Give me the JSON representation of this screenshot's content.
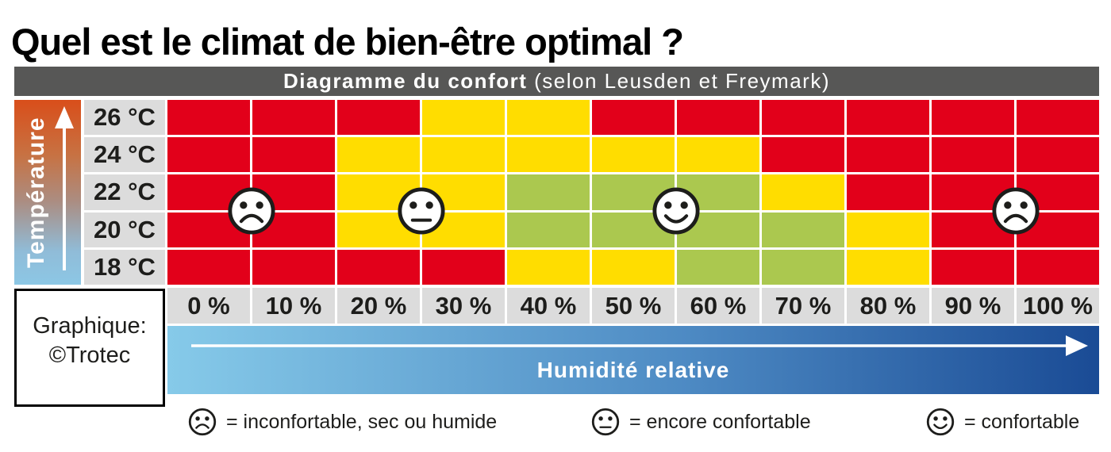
{
  "title": "Quel est le climat de bien-être optimal ?",
  "header": {
    "title_bold": "Diagramme du confort",
    "subtitle": " (selon Leusden et Freymark)"
  },
  "axes": {
    "temperature_label": "Température",
    "humidity_label": "Humidité relative",
    "temperatures": [
      "26 °C",
      "24 °C",
      "22 °C",
      "20 °C",
      "18 °C"
    ],
    "humidities": [
      "0 %",
      "10 %",
      "20 %",
      "30 %",
      "40 %",
      "50 %",
      "60 %",
      "70 %",
      "80 %",
      "90 %",
      "100 %"
    ]
  },
  "credit": {
    "line1": "Graphique:",
    "line2": "©Trotec"
  },
  "legend": [
    {
      "icon": "sad-face",
      "mood": "sad",
      "label": "= inconfortable, sec ou humide"
    },
    {
      "icon": "neutral-face",
      "mood": "neutral",
      "label": "= encore confortable"
    },
    {
      "icon": "happy-face",
      "mood": "happy",
      "label": "= confortable"
    }
  ],
  "colors": {
    "red": "#e2001a",
    "yellow": "#ffdd00",
    "green": "#abc84f",
    "cell_gray": "#dcdcdc",
    "header_gray": "#575756",
    "arrow_blue_start": "#86cae9",
    "arrow_blue_end": "#1a4b95",
    "temp_gradient_top": "#d94e1a",
    "temp_gradient_bottom": "#8cc7e5"
  },
  "chart_data": {
    "type": "heatmap",
    "title": "Diagramme du confort (selon Leusden et Freymark)",
    "xlabel": "Humidité relative",
    "ylabel": "Température",
    "x_categories": [
      "0 %",
      "10 %",
      "20 %",
      "30 %",
      "40 %",
      "50 %",
      "60 %",
      "70 %",
      "80 %",
      "90 %",
      "100 %"
    ],
    "y_categories_top_to_bottom": [
      "26 °C",
      "24 °C",
      "22 °C",
      "20 °C",
      "18 °C"
    ],
    "value_meanings": {
      "red": "inconfortable, sec ou humide",
      "yellow": "encore confortable",
      "green": "confortable"
    },
    "cells_top_to_bottom": [
      [
        "red",
        "red",
        "red",
        "yellow",
        "yellow",
        "red",
        "red",
        "red",
        "red",
        "red",
        "red"
      ],
      [
        "red",
        "red",
        "yellow",
        "yellow",
        "yellow",
        "yellow",
        "yellow",
        "red",
        "red",
        "red",
        "red"
      ],
      [
        "red",
        "red",
        "yellow",
        "yellow",
        "green",
        "green",
        "green",
        "yellow",
        "red",
        "red",
        "red"
      ],
      [
        "red",
        "red",
        "yellow",
        "yellow",
        "green",
        "green",
        "green",
        "green",
        "yellow",
        "red",
        "red"
      ],
      [
        "red",
        "red",
        "red",
        "red",
        "yellow",
        "yellow",
        "green",
        "green",
        "yellow",
        "red",
        "red"
      ]
    ],
    "faces": [
      {
        "mood": "sad",
        "col_boundary": 1,
        "row_boundary": 3,
        "between_humidity": "0–10 %",
        "between_temperature": "20–22 °C"
      },
      {
        "mood": "neutral",
        "col_boundary": 3,
        "row_boundary": 3,
        "between_humidity": "20–30 %",
        "between_temperature": "20–22 °C"
      },
      {
        "mood": "happy",
        "col_boundary": 6,
        "row_boundary": 3,
        "between_humidity": "50–60 %",
        "between_temperature": "20–22 °C"
      },
      {
        "mood": "sad",
        "col_boundary": 10,
        "row_boundary": 3,
        "between_humidity": "90–100 %",
        "between_temperature": "20–22 °C"
      }
    ]
  }
}
